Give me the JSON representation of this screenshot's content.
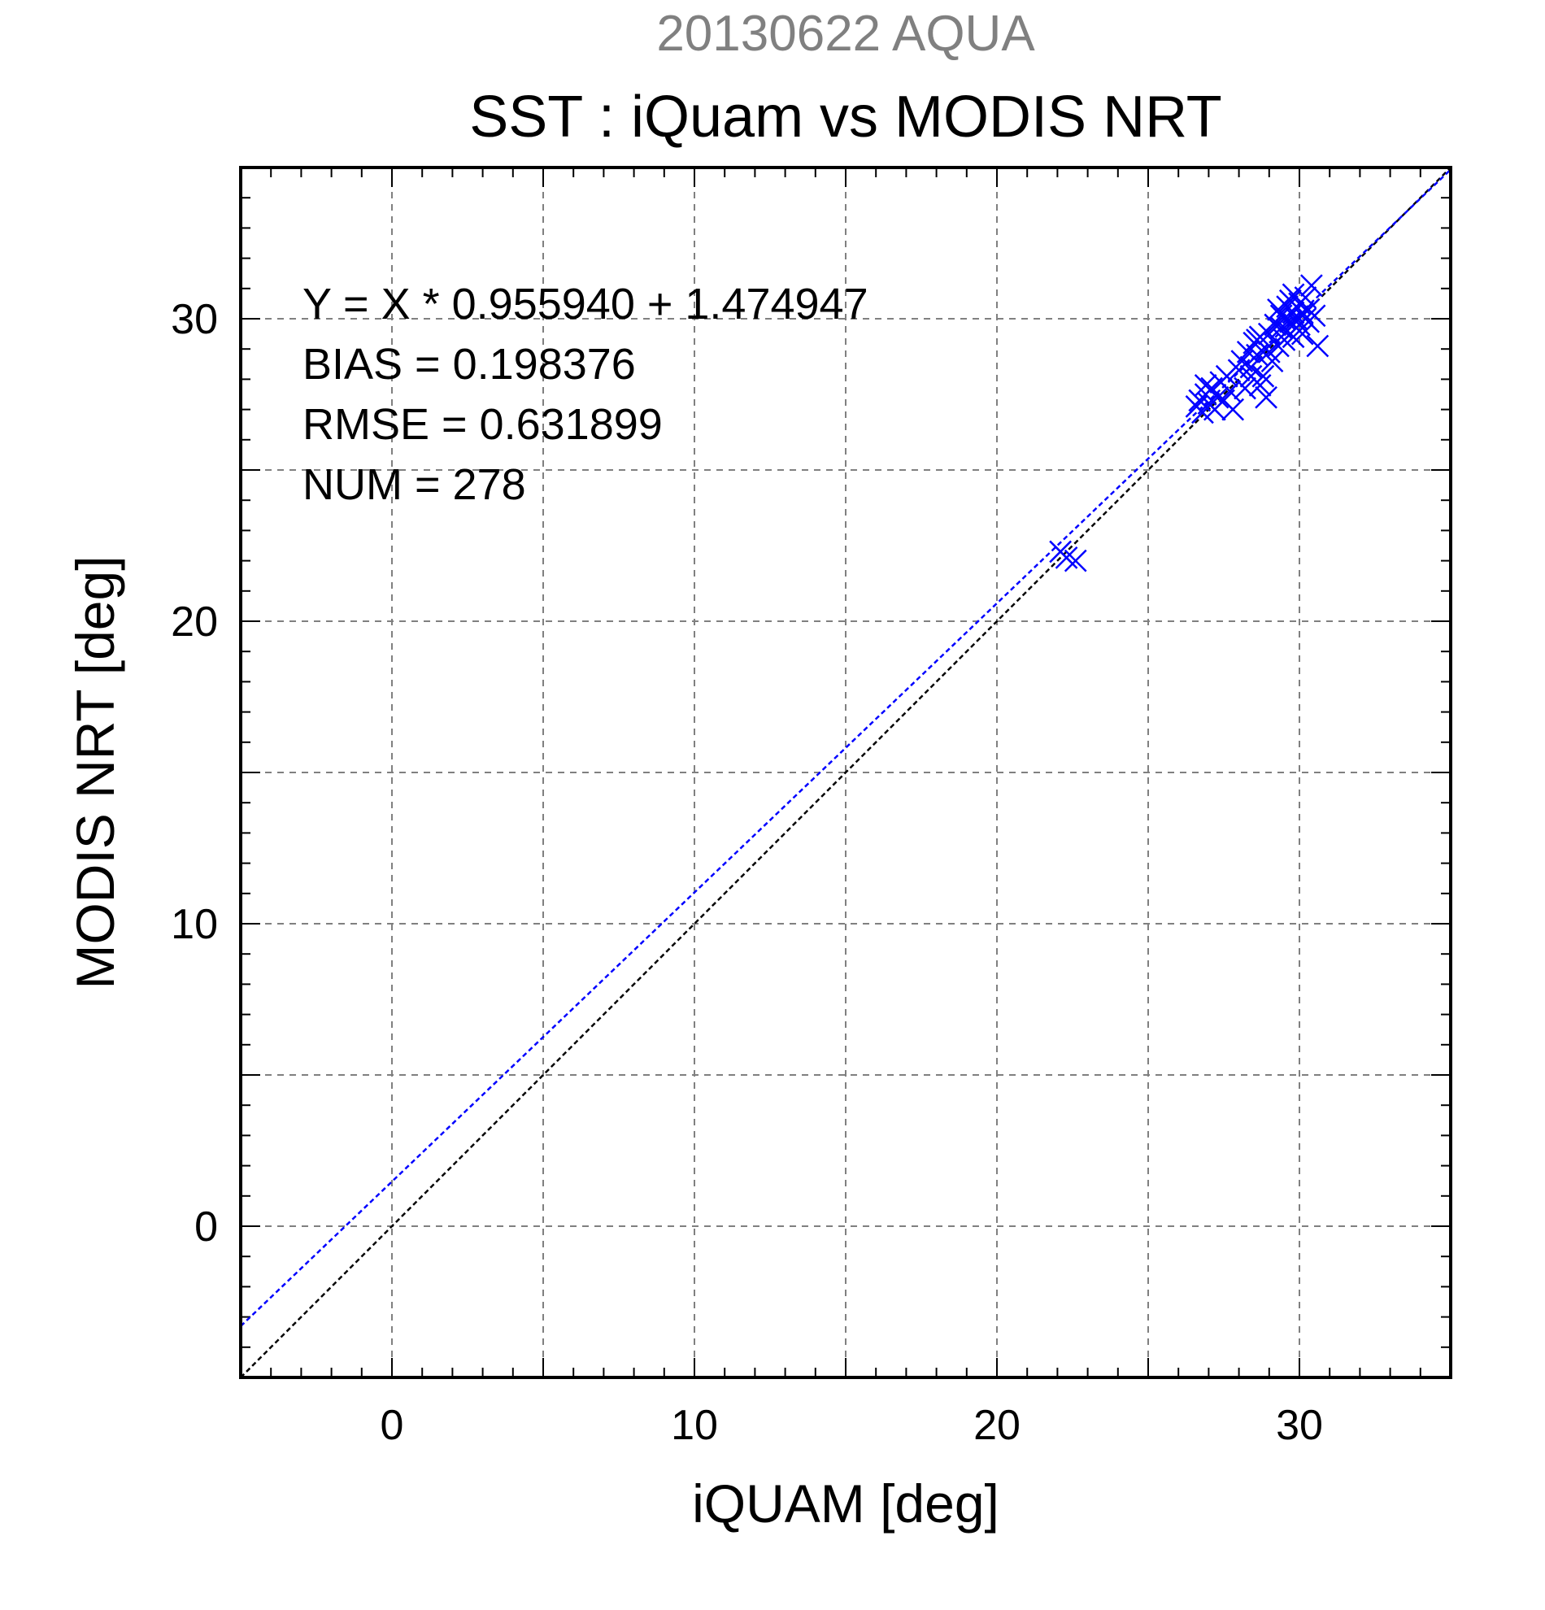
{
  "chart_data": {
    "type": "scatter",
    "supertitle": "20130622 AQUA",
    "title": "SST : iQuam vs MODIS NRT",
    "xlabel": "iQUAM [deg]",
    "ylabel": "MODIS NRT [deg]",
    "xlim": [
      -5,
      35
    ],
    "ylim": [
      -5,
      35
    ],
    "xticks": [
      0,
      10,
      20,
      30
    ],
    "yticks": [
      0,
      10,
      20,
      30
    ],
    "grid_step": 5,
    "minor_step": 1,
    "grid": true,
    "stats": [
      "Y = X * 0.955940 + 1.474947",
      "BIAS = 0.198376",
      "RMSE = 0.631899",
      "NUM = 278"
    ],
    "fit": {
      "slope": 0.95594,
      "intercept": 1.474947,
      "color": "#0000ff"
    },
    "identity_line_color": "#000000",
    "marker": "x",
    "marker_color": "#0000ff",
    "points": [
      [
        22.1,
        22.3
      ],
      [
        22.3,
        22.1
      ],
      [
        22.6,
        22.0
      ],
      [
        26.6,
        27.1
      ],
      [
        26.7,
        27.3
      ],
      [
        26.8,
        26.9
      ],
      [
        26.9,
        27.5
      ],
      [
        27.0,
        27.2
      ],
      [
        27.1,
        27.7
      ],
      [
        27.2,
        27.0
      ],
      [
        27.3,
        27.4
      ],
      [
        26.9,
        27.8
      ],
      [
        27.4,
        27.9
      ],
      [
        27.5,
        27.3
      ],
      [
        27.6,
        28.1
      ],
      [
        27.7,
        27.6
      ],
      [
        27.8,
        27.0
      ],
      [
        28.0,
        28.3
      ],
      [
        28.1,
        28.6
      ],
      [
        28.2,
        27.7
      ],
      [
        28.3,
        28.9
      ],
      [
        28.4,
        28.4
      ],
      [
        28.5,
        29.2
      ],
      [
        28.6,
        28.8
      ],
      [
        28.7,
        27.8
      ],
      [
        28.7,
        29.4
      ],
      [
        28.8,
        28.1
      ],
      [
        28.9,
        29.0
      ],
      [
        28.9,
        27.4
      ],
      [
        29.0,
        29.5
      ],
      [
        29.1,
        28.6
      ],
      [
        29.2,
        29.8
      ],
      [
        29.3,
        29.1
      ],
      [
        29.3,
        30.3
      ],
      [
        29.4,
        29.7
      ],
      [
        29.5,
        30.0
      ],
      [
        29.5,
        29.3
      ],
      [
        29.6,
        30.4
      ],
      [
        29.6,
        29.6
      ],
      [
        29.7,
        29.9
      ],
      [
        29.7,
        30.6
      ],
      [
        29.8,
        29.4
      ],
      [
        29.8,
        30.2
      ],
      [
        29.9,
        30.0
      ],
      [
        29.9,
        29.7
      ],
      [
        30.0,
        30.5
      ],
      [
        30.0,
        29.8
      ],
      [
        30.1,
        30.2
      ],
      [
        30.1,
        29.5
      ],
      [
        30.2,
        30.7
      ],
      [
        30.2,
        30.0
      ],
      [
        30.3,
        29.9
      ],
      [
        30.3,
        30.3
      ],
      [
        30.4,
        31.1
      ],
      [
        30.5,
        30.1
      ],
      [
        30.6,
        29.1
      ],
      [
        28.4,
        28.1
      ],
      [
        28.6,
        29.3
      ],
      [
        29.0,
        28.9
      ],
      [
        29.4,
        30.1
      ],
      [
        29.8,
        30.8
      ]
    ]
  }
}
